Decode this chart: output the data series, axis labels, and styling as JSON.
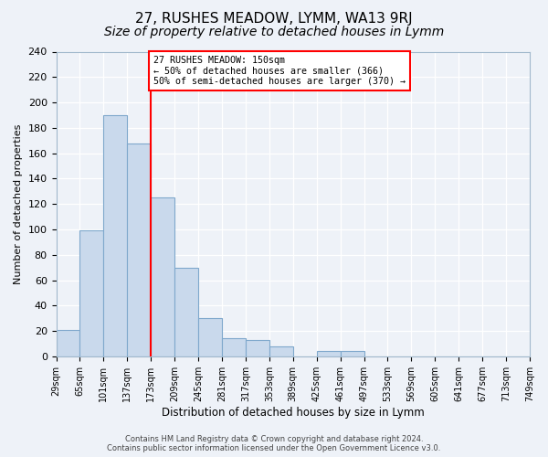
{
  "title": "27, RUSHES MEADOW, LYMM, WA13 9RJ",
  "subtitle": "Size of property relative to detached houses in Lymm",
  "xlabel": "Distribution of detached houses by size in Lymm",
  "ylabel": "Number of detached properties",
  "bin_labels": [
    "29sqm",
    "65sqm",
    "101sqm",
    "137sqm",
    "173sqm",
    "209sqm",
    "245sqm",
    "281sqm",
    "317sqm",
    "353sqm",
    "389sqm",
    "425sqm",
    "461sqm",
    "497sqm",
    "533sqm",
    "569sqm",
    "605sqm",
    "641sqm",
    "677sqm",
    "713sqm",
    "749sqm"
  ],
  "bar_values": [
    21,
    99,
    190,
    168,
    125,
    70,
    30,
    14,
    13,
    8,
    0,
    4,
    4,
    0,
    0,
    0,
    0,
    0,
    0,
    0
  ],
  "bar_color": "#c9d9ec",
  "bar_edge_color": "#7fa8cc",
  "annotation_title": "27 RUSHES MEADOW: 150sqm",
  "annotation_line1": "← 50% of detached houses are smaller (366)",
  "annotation_line2": "50% of semi-detached houses are larger (370) →",
  "ylim": [
    0,
    240
  ],
  "yticks": [
    0,
    20,
    40,
    60,
    80,
    100,
    120,
    140,
    160,
    180,
    200,
    220,
    240
  ],
  "footer1": "Contains HM Land Registry data © Crown copyright and database right 2024.",
  "footer2": "Contains public sector information licensed under the Open Government Licence v3.0.",
  "background_color": "#eef2f8",
  "grid_color": "#ffffff",
  "title_fontsize": 11,
  "subtitle_fontsize": 10
}
